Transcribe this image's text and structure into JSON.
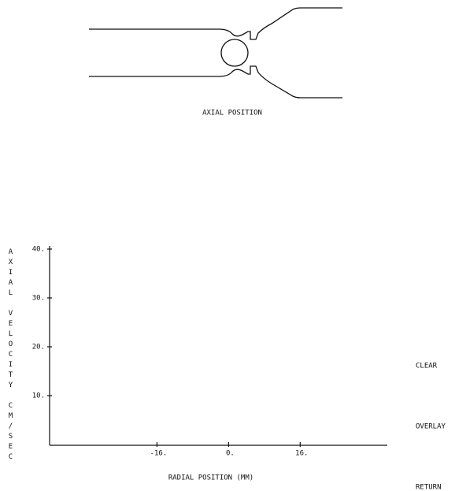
{
  "diagram": {
    "label": "AXIAL POSITION"
  },
  "chart_data": {
    "type": "line",
    "x_label": "RADIAL POSITION (MM)",
    "y_label": "AXIAL VELOCITY CM/SEC",
    "xlim": [
      -40,
      36
    ],
    "xticks": [
      {
        "value": -16,
        "label": "-16."
      },
      {
        "value": 0,
        "label": "0."
      },
      {
        "value": 16,
        "label": "16."
      }
    ],
    "ylim": [
      0,
      40
    ],
    "yticks": [
      {
        "value": 10,
        "label": "10."
      },
      {
        "value": 20,
        "label": "20."
      },
      {
        "value": 30,
        "label": "30."
      },
      {
        "value": 40,
        "label": "40."
      }
    ]
  },
  "menu": [
    "CLEAR",
    "OVERLAY",
    "RETURN"
  ]
}
